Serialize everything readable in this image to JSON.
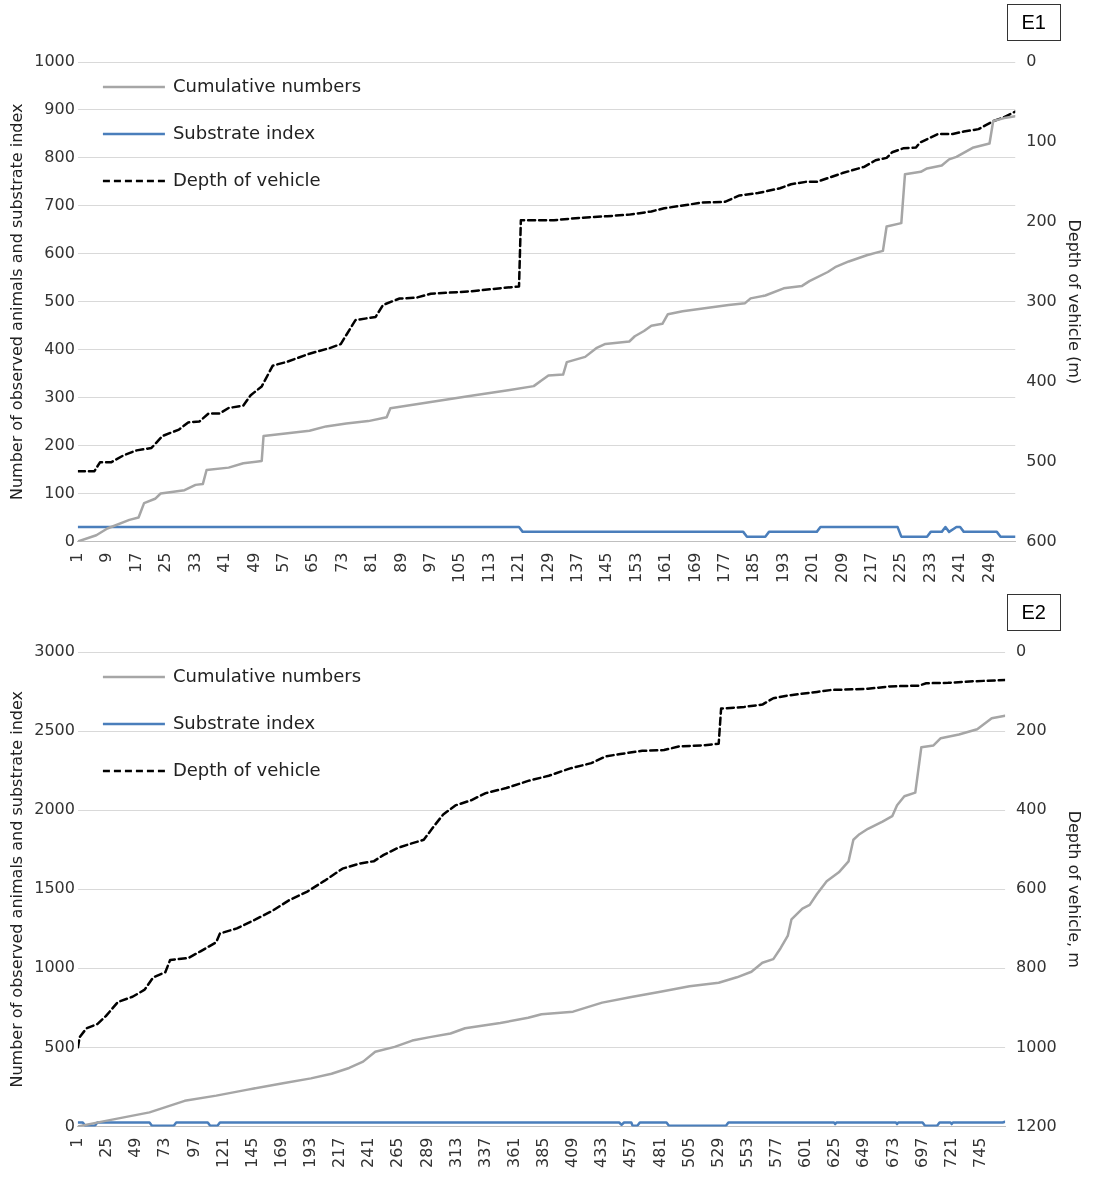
{
  "chart_data": [
    {
      "type": "line",
      "title": "E1",
      "ylabel": "Number of observed animals and substrate index",
      "y2label": "Depth of vehicle (m)",
      "xlim": [
        1,
        256
      ],
      "xticks": [
        1,
        9,
        17,
        25,
        33,
        41,
        49,
        57,
        65,
        73,
        81,
        89,
        97,
        105,
        113,
        121,
        129,
        137,
        145,
        153,
        161,
        169,
        177,
        185,
        193,
        201,
        209,
        217,
        225,
        233,
        241,
        249
      ],
      "ylim": [
        0,
        1000
      ],
      "yticks": [
        0,
        100,
        200,
        300,
        400,
        500,
        600,
        700,
        800,
        900,
        1000
      ],
      "y2lim": [
        600,
        0
      ],
      "y2ticks": [
        0,
        100,
        200,
        300,
        400,
        500,
        600
      ],
      "grid": "y",
      "legend": "top left",
      "marker": "none",
      "series": [
        {
          "name": "Cumulative numbers",
          "color": "#a6a6a6",
          "line_style": "solid",
          "x": [
            1,
            6,
            9,
            15,
            17.5,
            19,
            22,
            23.5,
            30,
            33,
            35,
            36,
            42,
            46,
            51,
            51.5,
            64,
            68.5,
            74,
            80,
            85,
            86,
            97,
            108,
            118.5,
            125,
            127,
            129,
            133,
            134,
            139,
            142,
            144.5,
            151,
            152.5,
            155,
            157,
            160,
            161.5,
            165.5,
            172,
            178,
            182.5,
            184,
            188,
            193,
            198,
            200,
            205,
            207,
            210.7,
            215.6,
            220,
            221,
            225,
            226,
            230.3,
            232,
            236,
            238,
            240,
            244.4,
            249,
            250,
            253,
            256
          ],
          "values": [
            0,
            13,
            27,
            45,
            50,
            80,
            89,
            100,
            107,
            118,
            120,
            149,
            154,
            163,
            168,
            220,
            231,
            240,
            246,
            251,
            259,
            278,
            291,
            304,
            316,
            324,
            335,
            346,
            348,
            374,
            385,
            403,
            412,
            417,
            428,
            439,
            450,
            454,
            474,
            480,
            487,
            493,
            497,
            507,
            513,
            528,
            533,
            543,
            562,
            572,
            584,
            597,
            606,
            657,
            664,
            766,
            771,
            778,
            784,
            797,
            802,
            821,
            830,
            877,
            883,
            887
          ]
        },
        {
          "name": "Substrate index",
          "color": "#4a7ebb",
          "line_style": "solid",
          "x": [
            1,
            121,
            122,
            182,
            183,
            188,
            189,
            202,
            203,
            224,
            225,
            232,
            233,
            236,
            237,
            238,
            240,
            241,
            242,
            251,
            252,
            256
          ],
          "values": [
            30,
            30,
            20,
            20,
            10,
            10,
            20,
            20,
            30,
            30,
            10,
            10,
            20,
            20,
            30,
            20,
            30,
            30,
            20,
            20,
            10,
            10
          ]
        },
        {
          "name": "Depth of vehicle",
          "color": "#000000",
          "line_style": "dashed",
          "axis": "y2",
          "x": [
            1,
            5.5,
            7,
            10,
            13.5,
            17,
            21,
            24,
            28.5,
            31,
            34,
            36.5,
            39.5,
            42,
            46,
            48,
            51,
            54,
            58,
            64,
            69.5,
            72.5,
            76.5,
            82,
            84,
            88.5,
            93,
            97,
            108,
            116,
            121,
            121.5,
            130.5,
            137.5,
            145,
            151,
            157,
            160.5,
            166.5,
            170.5,
            177,
            181,
            186,
            192,
            195,
            199,
            202,
            209,
            215,
            218,
            221,
            222.5,
            225.5,
            229,
            230,
            235,
            239,
            242,
            246,
            250,
            253,
            256
          ],
          "values": [
            512,
            512,
            501,
            501,
            492,
            486,
            483,
            468,
            460,
            451,
            450,
            440,
            440,
            433,
            430,
            417,
            406,
            380,
            375,
            365,
            358,
            353,
            323,
            319,
            304,
            296,
            295,
            290,
            287,
            283,
            281,
            198,
            198,
            195,
            193,
            191,
            187,
            183,
            179,
            176,
            175,
            167,
            164,
            158,
            153,
            150,
            150,
            139,
            131,
            123,
            120,
            113,
            108,
            107,
            101,
            90,
            90,
            87,
            84,
            74,
            69,
            62
          ]
        }
      ]
    },
    {
      "type": "line",
      "title": "E2",
      "ylabel": "Number of observed animals and substrate index",
      "y2label": "Depth of vehicle, m",
      "xlim": [
        1,
        765
      ],
      "xticks": [
        1,
        25,
        49,
        73,
        97,
        121,
        145,
        169,
        193,
        217,
        241,
        265,
        289,
        313,
        337,
        361,
        385,
        409,
        433,
        457,
        481,
        505,
        529,
        553,
        577,
        601,
        625,
        649,
        673,
        697,
        721,
        745
      ],
      "ylim": [
        0,
        3000
      ],
      "yticks": [
        0,
        500,
        1000,
        1500,
        2000,
        2500,
        3000
      ],
      "y2lim": [
        1200,
        0
      ],
      "y2ticks": [
        0,
        200,
        400,
        600,
        800,
        1000,
        1200
      ],
      "grid": "y",
      "legend": "top left",
      "marker": "none",
      "series": [
        {
          "name": "Cumulative numbers",
          "color": "#a6a6a6",
          "line_style": "solid",
          "x": [
            1,
            19.7,
            60,
            89,
            115,
            141,
            170,
            193,
            210,
            224.5,
            236,
            246,
            262,
            276.5,
            291,
            308,
            320,
            349,
            372,
            383,
            409,
            433,
            457,
            481,
            505,
            529,
            544,
            556,
            565,
            574,
            580,
            586,
            589,
            598,
            604,
            610,
            618,
            628,
            636,
            640,
            645,
            652,
            664,
            672,
            676,
            682,
            691,
            696,
            706,
            712,
            727,
            742,
            754,
            765
          ],
          "values": [
            0,
            29,
            89,
            162,
            195,
            233,
            273,
            304,
            333,
            370,
            410,
            472,
            503,
            543,
            565,
            588,
            621,
            654,
            687,
            709,
            726,
            783,
            818,
            852,
            886,
            909,
            943,
            978,
            1035,
            1058,
            1127,
            1207,
            1310,
            1378,
            1401,
            1470,
            1550,
            1607,
            1676,
            1813,
            1848,
            1882,
            1928,
            1962,
            2031,
            2088,
            2111,
            2398,
            2409,
            2455,
            2478,
            2512,
            2581,
            2597
          ]
        },
        {
          "name": "Substrate index",
          "color": "#4a7ebb",
          "line_style": "solid",
          "x": [
            1,
            5,
            7,
            15,
            17,
            60,
            62,
            80,
            82,
            108,
            110,
            116,
            118,
            447,
            449,
            451,
            457,
            458,
            462,
            464,
            486,
            488,
            535,
            537,
            624,
            625,
            626,
            675,
            676,
            677,
            697,
            699,
            709,
            711,
            720,
            721,
            722,
            763,
            765
          ],
          "values": [
            25,
            25,
            5,
            5,
            25,
            25,
            5,
            5,
            25,
            25,
            5,
            5,
            25,
            25,
            10,
            25,
            25,
            5,
            5,
            25,
            25,
            5,
            5,
            25,
            25,
            15,
            25,
            25,
            15,
            25,
            25,
            5,
            5,
            25,
            25,
            15,
            25,
            25,
            30
          ]
        },
        {
          "name": "Depth of vehicle",
          "color": "#000000",
          "line_style": "dashed",
          "axis": "y2",
          "x": [
            1,
            2.4,
            8,
            17,
            24,
            34,
            46,
            56,
            63,
            73,
            77,
            92,
            102,
            115,
            118,
            132,
            147,
            161,
            175,
            190,
            204,
            219,
            233,
            245,
            253,
            265,
            276,
            286,
            294,
            302,
            312,
            325,
            337,
            354,
            372,
            389,
            406,
            424,
            436,
            448,
            466,
            484,
            496,
            517,
            529,
            531,
            550,
            565,
            574,
            586,
            610,
            622,
            652,
            670,
            694,
            700,
            718,
            739,
            765
          ],
          "values": [
            1000,
            974,
            952,
            941,
            921,
            885,
            872,
            854,
            823,
            810,
            779,
            774,
            757,
            734,
            712,
            699,
            677,
            655,
            628,
            606,
            579,
            548,
            535,
            529,
            513,
            495,
            484,
            475,
            442,
            411,
            388,
            375,
            357,
            344,
            326,
            313,
            295,
            281,
            264,
            258,
            250,
            248,
            239,
            236,
            232,
            143,
            139,
            133,
            117,
            110,
            101,
            96,
            93,
            87,
            85,
            79,
            78,
            74,
            71
          ]
        }
      ]
    }
  ]
}
